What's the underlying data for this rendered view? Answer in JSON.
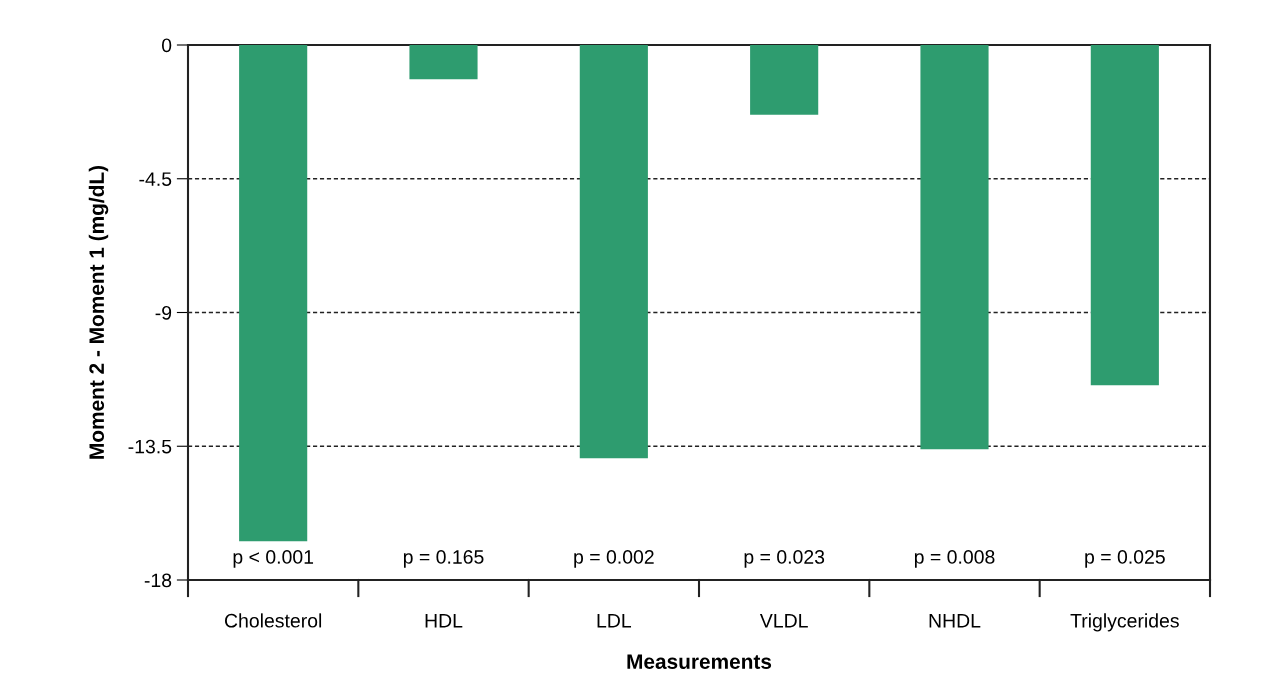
{
  "chart_data": {
    "type": "bar",
    "xlabel": "Measurements",
    "ylabel": "Moment 2 - Moment 1 (mg/dL)",
    "categories": [
      "Cholesterol",
      "HDL",
      "LDL",
      "VLDL",
      "NHDL",
      "Triglycerides"
    ],
    "values": [
      -16.7,
      -1.15,
      -13.9,
      -2.35,
      -13.6,
      -11.45
    ],
    "color": "#2e9c6f",
    "ylim": [
      -18,
      0
    ],
    "yticks": [
      {
        "value": -18,
        "label": "-18"
      },
      {
        "value": -13.5,
        "label": "-13.5"
      },
      {
        "value": -9,
        "label": "-9"
      },
      {
        "value": -4.5,
        "label": "-4.5"
      },
      {
        "value": 0,
        "label": "0"
      }
    ],
    "grid": "y",
    "legend": false,
    "annotations": [
      "p < 0.001",
      "p = 0.165",
      "p = 0.002",
      "p = 0.023",
      "p = 0.008",
      "p = 0.025"
    ]
  }
}
